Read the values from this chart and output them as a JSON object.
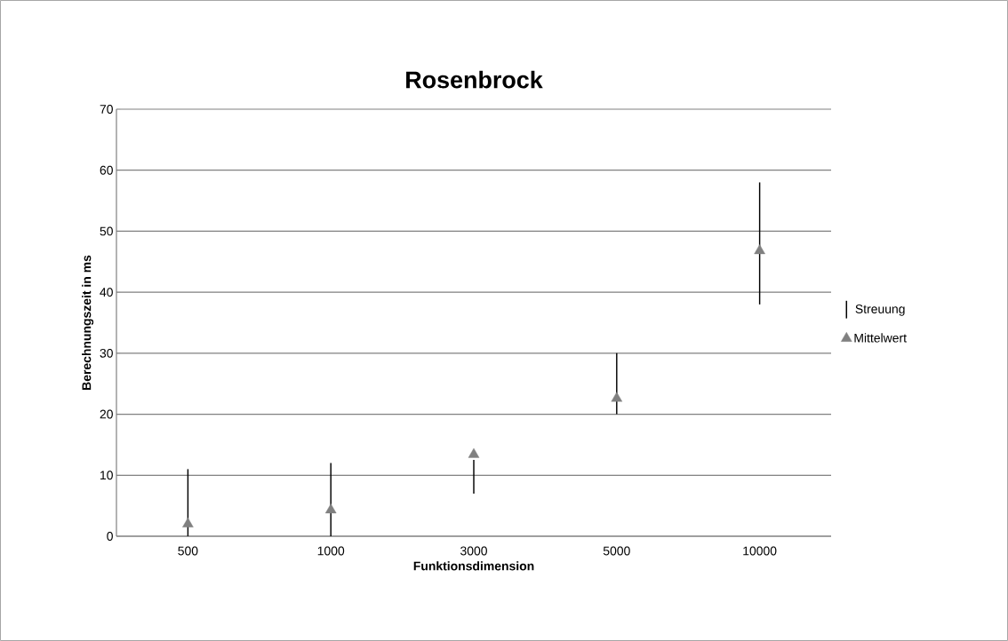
{
  "chart_data": {
    "type": "scatter",
    "title": "Rosenbrock",
    "xlabel": "Funktionsdimension",
    "ylabel": "Berechnungszeit in ms",
    "categories": [
      "500",
      "1000",
      "3000",
      "5000",
      "10000"
    ],
    "series": [
      {
        "name": "Streuung",
        "type": "bar",
        "color": "#000000",
        "base": [
          0,
          0,
          7,
          20,
          38
        ],
        "values": [
          11,
          12,
          5.5,
          10,
          20
        ]
      },
      {
        "name": "Mittelwert",
        "color": "#808080",
        "marker": "triangle",
        "values": [
          2,
          4.3,
          13.4,
          22.6,
          46.8
        ]
      }
    ],
    "ylim": [
      0,
      70
    ],
    "yticks": [
      0,
      10,
      20,
      30,
      40,
      50,
      60,
      70
    ],
    "grid": "y",
    "legend": "right"
  }
}
